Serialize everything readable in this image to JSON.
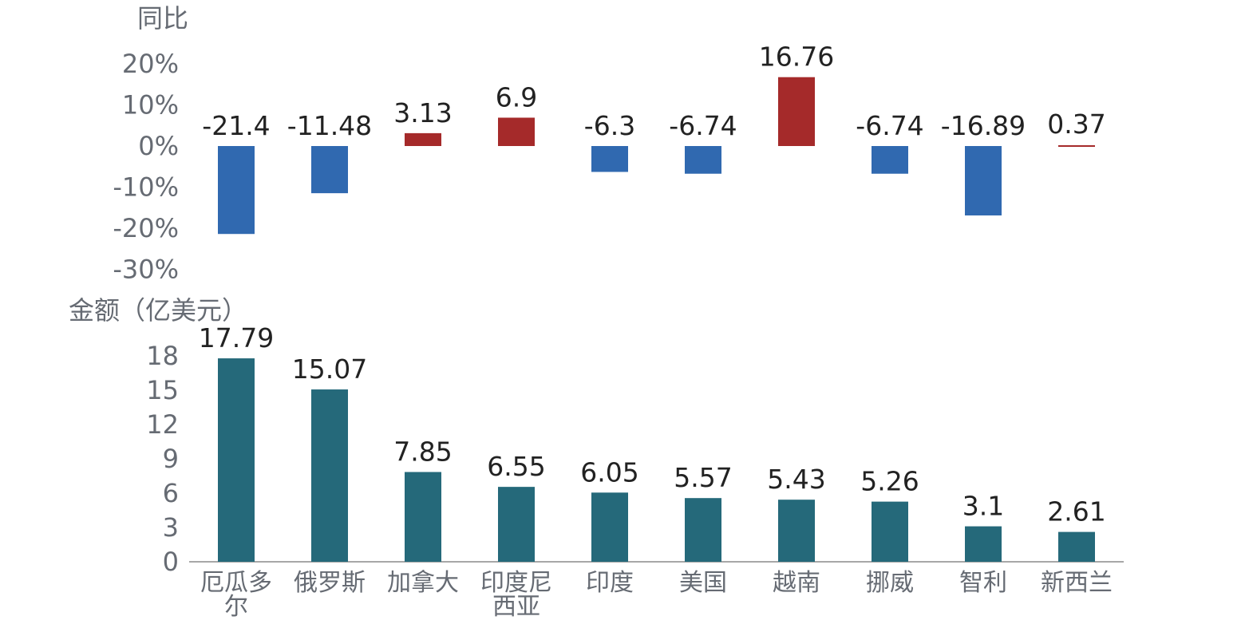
{
  "chart_data": [
    {
      "type": "bar",
      "ylabel": "同比",
      "ylim": [
        -30,
        20
      ],
      "yticks": [
        "20%",
        "10%",
        "0%",
        "-10%",
        "-20%",
        "-30%"
      ],
      "categories": [
        "厄瓜多尔",
        "俄罗斯",
        "加拿大",
        "印度尼西亚",
        "印度",
        "美国",
        "越南",
        "挪威",
        "智利",
        "新西兰"
      ],
      "values": [
        -21.4,
        -11.48,
        3.13,
        6.9,
        -6.3,
        -6.74,
        16.76,
        -6.74,
        -16.89,
        0.37
      ],
      "data_labels": [
        "-21.4",
        "-11.48",
        "3.13",
        "6.9",
        "-6.3",
        "-6.74",
        "16.76",
        "-6.74",
        "-16.89",
        "0.37"
      ],
      "colors": {
        "positive": "#a52a2a",
        "negative": "#3069b0"
      },
      "grid": false
    },
    {
      "type": "bar",
      "ylabel": "金额（亿美元）",
      "ylim": [
        0,
        18
      ],
      "yticks": [
        "18",
        "15",
        "12",
        "9",
        "6",
        "3",
        "0"
      ],
      "categories": [
        "厄瓜多尔",
        "俄罗斯",
        "加拿大",
        "印度尼西亚",
        "印度",
        "美国",
        "越南",
        "挪威",
        "智利",
        "新西兰"
      ],
      "category_labels": [
        [
          "厄瓜多",
          "尔"
        ],
        [
          "俄罗斯"
        ],
        [
          "加拿大"
        ],
        [
          "印度尼",
          "西亚"
        ],
        [
          "印度"
        ],
        [
          "美国"
        ],
        [
          "越南"
        ],
        [
          "挪威"
        ],
        [
          "智利"
        ],
        [
          "新西兰"
        ]
      ],
      "values": [
        17.79,
        15.07,
        7.85,
        6.55,
        6.05,
        5.57,
        5.43,
        5.26,
        3.1,
        2.61
      ],
      "data_labels": [
        "17.79",
        "15.07",
        "7.85",
        "6.55",
        "6.05",
        "5.57",
        "5.43",
        "5.26",
        "3.1",
        "2.61"
      ],
      "colors": {
        "bar": "#25697a",
        "axis": "#8a8a8a"
      },
      "grid": false
    }
  ]
}
